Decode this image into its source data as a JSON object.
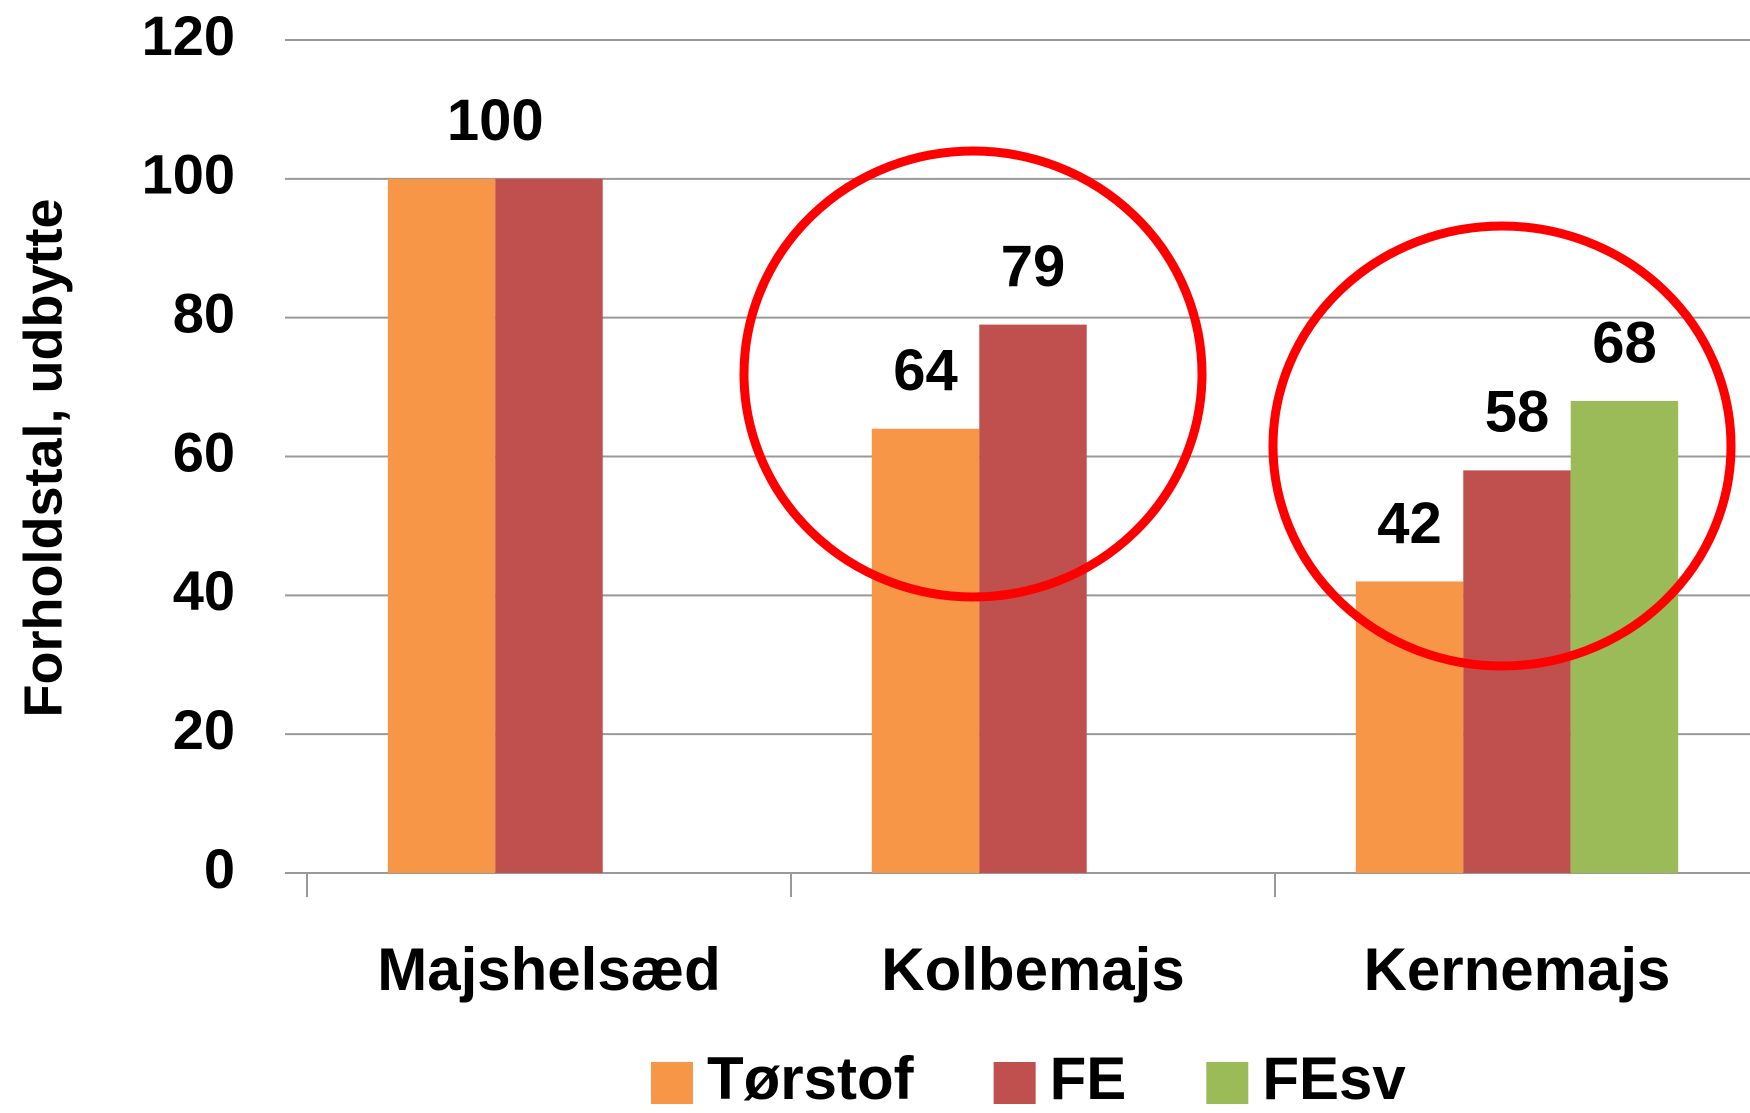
{
  "chart_data": {
    "type": "bar",
    "y_label": "Forholdstal, udbytte",
    "categories": [
      "Majshelsæd",
      "Kolbemajs",
      "Kernemajs"
    ],
    "series": [
      {
        "name": "Tørstof",
        "color": "#f79646",
        "values": [
          100,
          64,
          42
        ],
        "value_labels": [
          null,
          "64",
          "42"
        ]
      },
      {
        "name": "FE",
        "color": "#c0504d",
        "values": [
          100,
          79,
          58
        ],
        "value_labels": [
          "100",
          "79",
          "58"
        ]
      },
      {
        "name": "FEsv",
        "color": "#9bbb59",
        "values": [
          null,
          null,
          68
        ],
        "value_labels": [
          null,
          null,
          "68"
        ]
      }
    ],
    "ylim": [
      0,
      120
    ],
    "yticks": [
      0,
      20,
      40,
      60,
      80,
      100,
      120
    ],
    "grid": true,
    "legend": "bottom"
  }
}
